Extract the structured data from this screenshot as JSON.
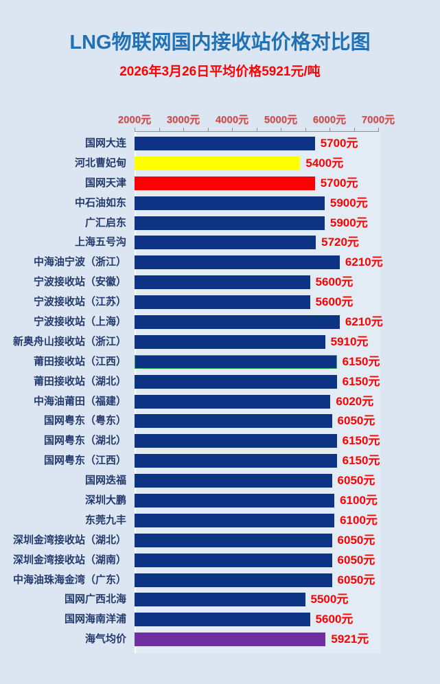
{
  "title": "LNG物联网国内接收站价格对比图",
  "subtitle": "2026年3月26日平均价格5921元/吨",
  "colors": {
    "page_bg": "#dce6f2",
    "title_blue": "#2171b5",
    "subtitle_red": "#fe0000",
    "tick_label_red": "#cd4a4a",
    "value_red": "#fb0200",
    "row_label_navy": "#233a6d",
    "axis_gray": "#8f8f8f",
    "navy": "#0d3384",
    "yellow": "#ffff00",
    "red": "#fe0000",
    "purple": "#7030a0",
    "highlight_border_green": "#2aa84f"
  },
  "chart_data": {
    "type": "bar",
    "orientation": "horizontal",
    "title": "LNG物联网国内接收站价格对比图",
    "subtitle": "2026年3月26日平均价格5921元/吨",
    "xlabel": "",
    "ylabel": "",
    "xlim": [
      2000,
      7000
    ],
    "x_tick_labels": [
      "2000元",
      "3000元",
      "4000元",
      "5000元",
      "6000元",
      "7000元"
    ],
    "x_tick_values": [
      2000,
      3000,
      4000,
      5000,
      6000,
      7000
    ],
    "minor_tick_interval": 500,
    "grid": false,
    "legend": false,
    "average_price": 5921,
    "highlighted_category": "莆田接收站（江西）",
    "rows": [
      {
        "label": "国网大连",
        "value": 5700,
        "value_label": "5700元",
        "color": "navy",
        "highlight": false
      },
      {
        "label": "河北曹妃甸",
        "value": 5400,
        "value_label": "5400元",
        "color": "yellow",
        "highlight": false
      },
      {
        "label": "国网天津",
        "value": 5700,
        "value_label": "5700元",
        "color": "red",
        "highlight": false
      },
      {
        "label": "中石油如东",
        "value": 5900,
        "value_label": "5900元",
        "color": "navy",
        "highlight": false
      },
      {
        "label": "广汇启东",
        "value": 5900,
        "value_label": "5900元",
        "color": "navy",
        "highlight": false
      },
      {
        "label": "上海五号沟",
        "value": 5720,
        "value_label": "5720元",
        "color": "navy",
        "highlight": false
      },
      {
        "label": "中海油宁波（浙江）",
        "value": 6210,
        "value_label": "6210元",
        "color": "navy",
        "highlight": false
      },
      {
        "label": "宁波接收站（安徽）",
        "value": 5600,
        "value_label": "5600元",
        "color": "navy",
        "highlight": false
      },
      {
        "label": "宁波接收站（江苏）",
        "value": 5600,
        "value_label": "5600元",
        "color": "navy",
        "highlight": false
      },
      {
        "label": "宁波接收站（上海）",
        "value": 6210,
        "value_label": "6210元",
        "color": "navy",
        "highlight": false
      },
      {
        "label": "新奥舟山接收站（浙江）",
        "value": 5910,
        "value_label": "5910元",
        "color": "navy",
        "highlight": false
      },
      {
        "label": "莆田接收站（江西）",
        "value": 6150,
        "value_label": "6150元",
        "color": "navy",
        "highlight": true
      },
      {
        "label": "莆田接收站（湖北）",
        "value": 6150,
        "value_label": "6150元",
        "color": "navy",
        "highlight": false
      },
      {
        "label": "中海油莆田（福建）",
        "value": 6020,
        "value_label": "6020元",
        "color": "navy",
        "highlight": false
      },
      {
        "label": "国网粤东（粤东）",
        "value": 6050,
        "value_label": "6050元",
        "color": "navy",
        "highlight": false
      },
      {
        "label": "国网粤东（湖北）",
        "value": 6150,
        "value_label": "6150元",
        "color": "navy",
        "highlight": false
      },
      {
        "label": "国网粤东（江西）",
        "value": 6150,
        "value_label": "6150元",
        "color": "navy",
        "highlight": false
      },
      {
        "label": "国网迭福",
        "value": 6050,
        "value_label": "6050元",
        "color": "navy",
        "highlight": false
      },
      {
        "label": "深圳大鹏",
        "value": 6100,
        "value_label": "6100元",
        "color": "navy",
        "highlight": false
      },
      {
        "label": "东莞九丰",
        "value": 6100,
        "value_label": "6100元",
        "color": "navy",
        "highlight": false
      },
      {
        "label": "深圳金湾接收站（湖北）",
        "value": 6050,
        "value_label": "6050元",
        "color": "navy",
        "highlight": false
      },
      {
        "label": "深圳金湾接收站（湖南）",
        "value": 6050,
        "value_label": "6050元",
        "color": "navy",
        "highlight": false
      },
      {
        "label": "中海油珠海金湾（广东）",
        "value": 6050,
        "value_label": "6050元",
        "color": "navy",
        "highlight": false
      },
      {
        "label": "国网广西北海",
        "value": 5500,
        "value_label": "5500元",
        "color": "navy",
        "highlight": false
      },
      {
        "label": "国网海南洋浦",
        "value": 5600,
        "value_label": "5600元",
        "color": "navy",
        "highlight": false
      },
      {
        "label": "海气均价",
        "value": 5921,
        "value_label": "5921元",
        "color": "purple",
        "highlight": false
      }
    ]
  }
}
